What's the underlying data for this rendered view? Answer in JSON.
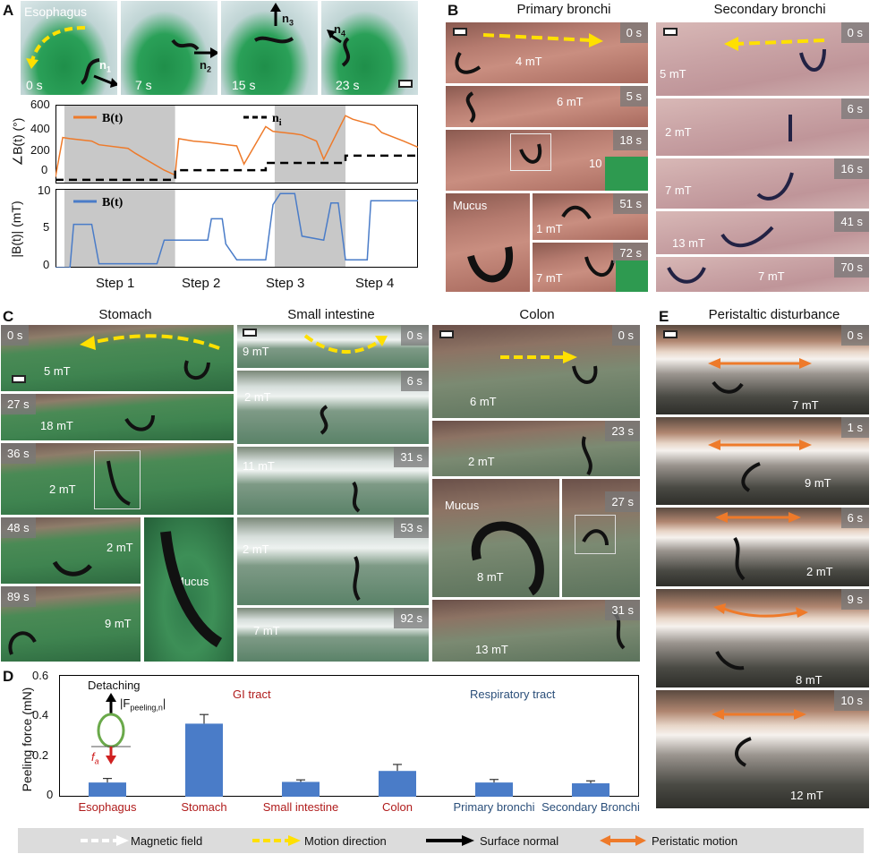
{
  "panels": {
    "A": {
      "letter": "A",
      "organ_label": "Esophagus",
      "times": [
        "0 s",
        "7 s",
        "15 s",
        "23 s"
      ],
      "normals": [
        "n",
        "n",
        "n",
        "n"
      ],
      "normal_subs": [
        "1",
        "2",
        "3",
        "4"
      ],
      "angle_chart": {
        "ylabel": "∠B(t) (°)",
        "yticks": [
          "600",
          "400",
          "200",
          "0"
        ],
        "legend_B": "B(t)",
        "legend_n": "n",
        "legend_n_sub": "i"
      },
      "mag_chart": {
        "ylabel": "|B(t)| (mT)",
        "yticks": [
          "10",
          "5",
          "0"
        ],
        "legend_B": "B(t)"
      },
      "steps": [
        "Step 1",
        "Step 2",
        "Step 3",
        "Step 4"
      ]
    },
    "B": {
      "letter": "B",
      "title_primary": "Primary bronchi",
      "title_secondary": "Secondary bronchi",
      "primary_times": [
        "0 s",
        "5 s",
        "18 s",
        "51 s",
        "72 s"
      ],
      "primary_fields": [
        "4 mT",
        "6 mT",
        "10 mT",
        "1 mT",
        "7 mT"
      ],
      "mucus": "Mucus",
      "secondary_times": [
        "0 s",
        "6 s",
        "16 s",
        "41 s",
        "70 s"
      ],
      "secondary_fields": [
        "5 mT",
        "2 mT",
        "7 mT",
        "13 mT",
        "7 mT"
      ]
    },
    "C": {
      "letter": "C",
      "stomach_title": "Stomach",
      "stomach_times": [
        "0 s",
        "27 s",
        "36 s",
        "48 s",
        "89 s"
      ],
      "stomach_fields": [
        "5 mT",
        "18 mT",
        "2 mT",
        "2 mT",
        "9 mT"
      ],
      "sint_title": "Small intestine",
      "sint_times": [
        "0 s",
        "6 s",
        "31 s",
        "53 s",
        "92 s"
      ],
      "sint_fields": [
        "9 mT",
        "2 mT",
        "11 mT",
        "2 mT",
        "7 mT"
      ],
      "colon_title": "Colon",
      "colon_times": [
        "0 s",
        "23 s",
        "27 s",
        "31 s"
      ],
      "colon_fields": [
        "6 mT",
        "2 mT",
        "8 mT",
        "13 mT"
      ],
      "mucus": "Mucus"
    },
    "E": {
      "letter": "E",
      "title": "Peristaltic disturbance",
      "times": [
        "0 s",
        "1 s",
        "6 s",
        "9 s",
        "10 s"
      ],
      "fields": [
        "7 mT",
        "9 mT",
        "2 mT",
        "8 mT",
        "12 mT"
      ]
    },
    "D": {
      "letter": "D",
      "ylabel": "Peeling force (mN)",
      "group_gi": "GI tract",
      "group_resp": "Respiratory tract",
      "inset_label": "Detaching",
      "inset_force": "|F",
      "inset_force_sub": "peeling,n",
      "inset_force_close": "|",
      "inset_fa": "f",
      "inset_fa_sub": "a"
    }
  },
  "chart_data": [
    {
      "type": "line",
      "xlabel": "",
      "ylabel": "∠B(t) (°)",
      "ylim": [
        -50,
        600
      ],
      "series": [
        {
          "name": "B(t)",
          "x": [
            0,
            0.02,
            0.04,
            0.1,
            0.12,
            0.2,
            0.22,
            0.3,
            0.33,
            0.34,
            0.38,
            0.42,
            0.5,
            0.52,
            0.58,
            0.6,
            0.66,
            0.68,
            0.72,
            0.74,
            0.8,
            0.82,
            0.88,
            0.9,
            0.96,
            1.0
          ],
          "y": [
            5,
            330,
            320,
            300,
            270,
            240,
            200,
            60,
            20,
            320,
            300,
            290,
            260,
            110,
            420,
            380,
            360,
            350,
            300,
            150,
            510,
            480,
            430,
            370,
            300,
            250
          ]
        },
        {
          "name": "n",
          "x": [
            0,
            0.33,
            0.33,
            0.58,
            0.58,
            0.8,
            0.8,
            1.0
          ],
          "y": [
            -20,
            -20,
            60,
            60,
            120,
            120,
            180,
            180
          ]
        }
      ]
    },
    {
      "type": "line",
      "xlabel": "",
      "ylabel": "|B(t)| (mT)",
      "ylim": [
        0,
        10
      ],
      "series": [
        {
          "name": "B(t)",
          "x": [
            0,
            0.04,
            0.05,
            0.1,
            0.12,
            0.28,
            0.3,
            0.42,
            0.43,
            0.46,
            0.47,
            0.5,
            0.52,
            0.58,
            0.6,
            0.62,
            0.66,
            0.68,
            0.74,
            0.76,
            0.78,
            0.8,
            0.86,
            0.87,
            0.9,
            0.95,
            1.0
          ],
          "y": [
            0,
            0,
            5.5,
            5.5,
            0.5,
            0.5,
            3.5,
            3.5,
            6.2,
            6.2,
            3,
            1,
            1,
            1,
            8,
            9.4,
            9.4,
            4,
            3.5,
            8.2,
            8.2,
            1,
            1,
            8.5,
            8.5,
            8.5,
            8.5
          ]
        }
      ]
    },
    {
      "type": "bar",
      "categories": [
        "Esophagus",
        "Stomach",
        "Small intestine",
        "Colon",
        "Primary bronchi",
        "Secondary Bronchi"
      ],
      "values": [
        0.07,
        0.36,
        0.073,
        0.127,
        0.07,
        0.066
      ],
      "errors": [
        0.02,
        0.045,
        0.01,
        0.032,
        0.015,
        0.012
      ],
      "ylabel": "Peeling force (mN)",
      "ylim": [
        0,
        0.6
      ],
      "yticks": [
        "0.6",
        "0.4",
        "0.2",
        "0"
      ]
    }
  ],
  "legend": [
    {
      "label": "Magnetic field",
      "color": "#ffffff",
      "icon": "dashed-white-arrow-icon"
    },
    {
      "label": "Motion direction",
      "color": "#ffe000",
      "icon": "dashed-yellow-arrow-icon"
    },
    {
      "label": "Surface normal",
      "color": "#000000",
      "icon": "black-arrow-icon"
    },
    {
      "label": "Peristatic motion",
      "color": "#ee7a2a",
      "icon": "orange-double-arrow-icon"
    }
  ],
  "colors": {
    "gi_text": "#b01c1c",
    "resp_text": "#2b4f7a",
    "bar": "#4a7cc8",
    "orange": "#ee7a2a",
    "blue_line": "#4a7cc8",
    "gray_shade": "#c8c8c8"
  }
}
